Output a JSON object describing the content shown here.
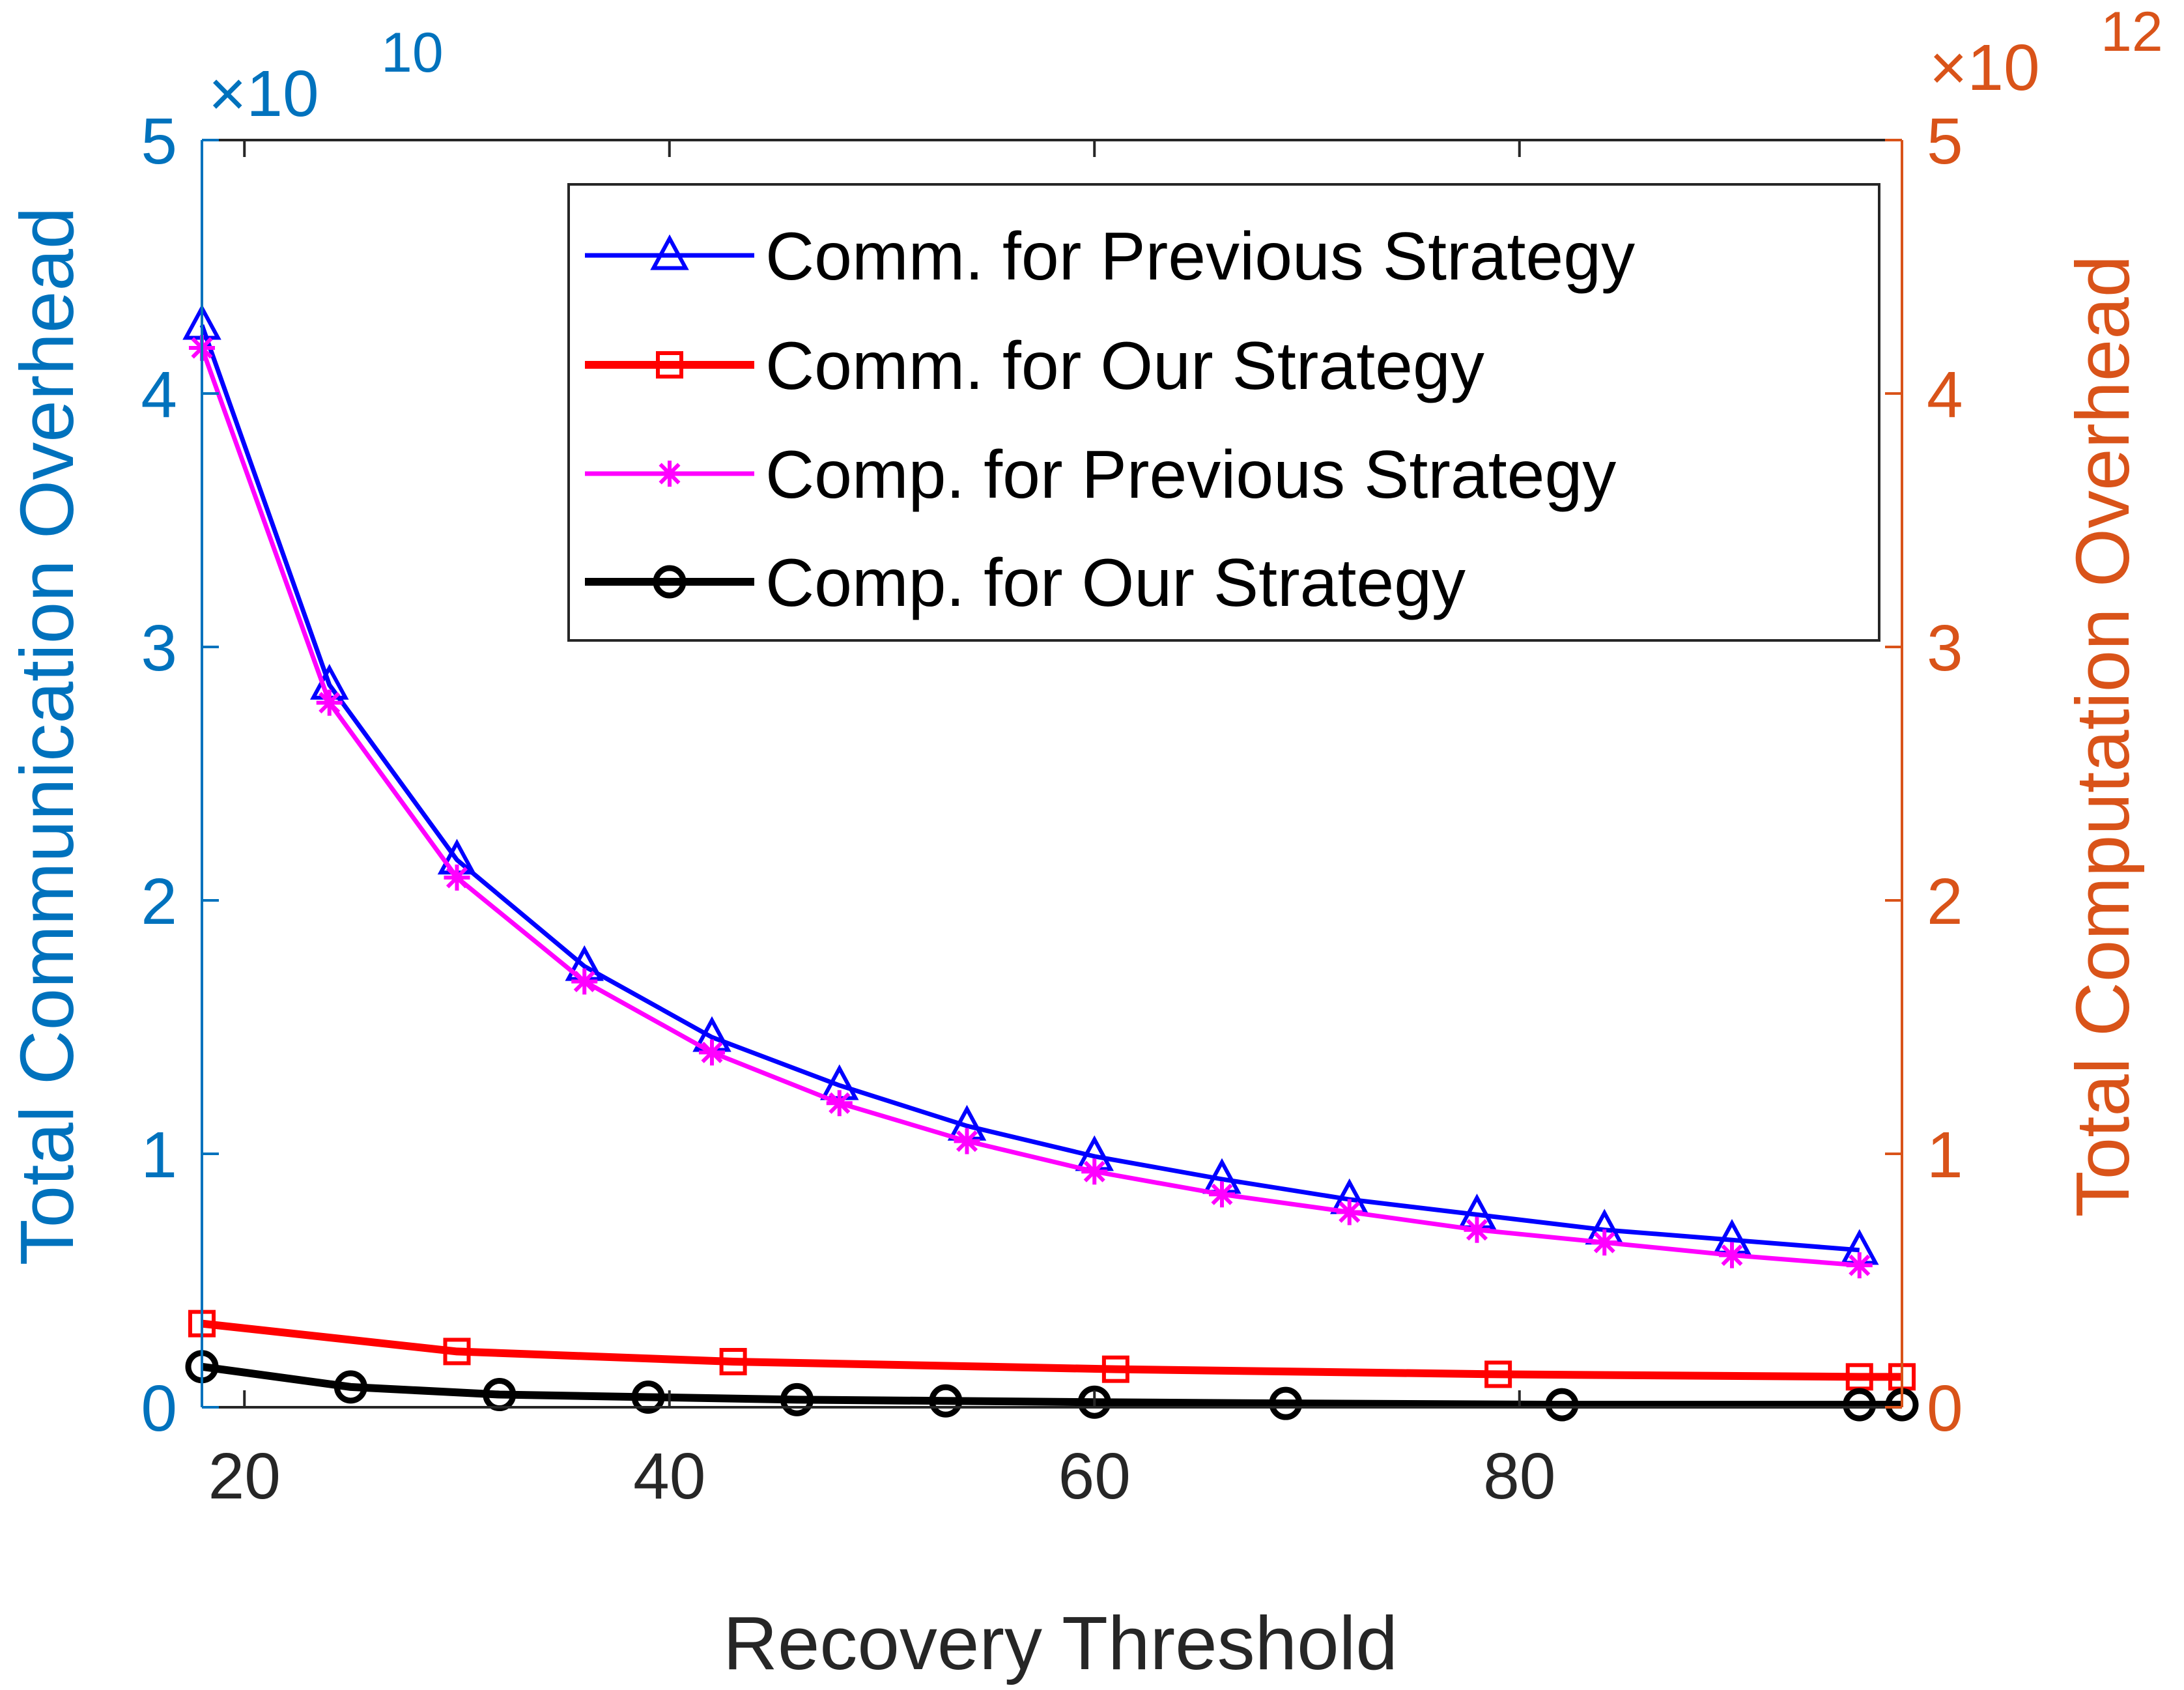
{
  "colors": {
    "left_axis": "#0072BD",
    "right_axis": "#D95319",
    "bottom_axis": "#262626"
  },
  "chart_data": {
    "type": "line",
    "xlabel": "Recovery Threshold",
    "ylabel_left": "Total Communication Overhead",
    "ylabel_right": "Total Computation Overhead",
    "left_exponent": {
      "base": "×10",
      "power": "10"
    },
    "right_exponent": {
      "base": "×10",
      "power": "12"
    },
    "xlim": [
      18,
      98
    ],
    "ylim_left": [
      0,
      5
    ],
    "ylim_right": [
      0,
      5
    ],
    "x_ticks": [
      20,
      40,
      60,
      80
    ],
    "y_ticks_left": [
      0,
      1,
      2,
      3,
      4,
      5
    ],
    "y_ticks_right": [
      0,
      1,
      2,
      3,
      4,
      5
    ],
    "grid": false,
    "legend_position": "top-right",
    "series": [
      {
        "name": "Comm. for Previous Strategy",
        "color": "#0000FF",
        "marker": "triangle",
        "line_width": 7,
        "axis": "left",
        "x": [
          18,
          24,
          30,
          36,
          42,
          48,
          54,
          60,
          66,
          72,
          78,
          84,
          90,
          96
        ],
        "y": [
          4.27,
          2.85,
          2.16,
          1.74,
          1.46,
          1.27,
          1.11,
          0.99,
          0.9,
          0.82,
          0.76,
          0.7,
          0.66,
          0.62
        ]
      },
      {
        "name": "Comm. for Our Strategy",
        "color": "#FF0000",
        "marker": "square",
        "line_width": 12,
        "axis": "left",
        "x": [
          18,
          30,
          43,
          61,
          79,
          96,
          98
        ],
        "y": [
          0.33,
          0.22,
          0.18,
          0.15,
          0.13,
          0.12,
          0.12
        ]
      },
      {
        "name": "Comp. for Previous Strategy",
        "color": "#FF00FF",
        "marker": "asterisk",
        "line_width": 7,
        "axis": "right",
        "x": [
          18,
          24,
          30,
          36,
          42,
          48,
          54,
          60,
          66,
          72,
          78,
          84,
          90,
          96
        ],
        "y": [
          4.18,
          2.78,
          2.09,
          1.68,
          1.4,
          1.2,
          1.05,
          0.93,
          0.84,
          0.77,
          0.7,
          0.65,
          0.6,
          0.56
        ]
      },
      {
        "name": "Comp. for Our Strategy",
        "color": "#000000",
        "marker": "circle",
        "line_width": 12,
        "axis": "right",
        "x": [
          18,
          25,
          32,
          39,
          46,
          53,
          60,
          69,
          82,
          96,
          98
        ],
        "y": [
          0.16,
          0.08,
          0.05,
          0.04,
          0.03,
          0.025,
          0.02,
          0.015,
          0.01,
          0.01,
          0.01
        ]
      }
    ]
  }
}
